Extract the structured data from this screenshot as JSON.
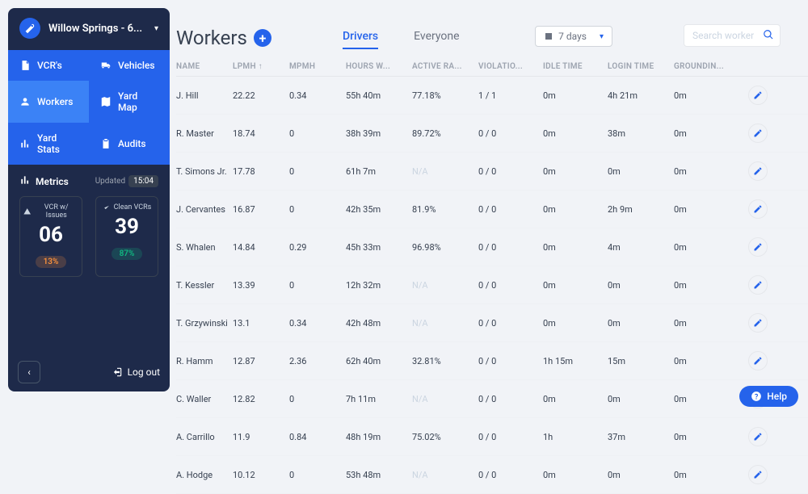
{
  "location": {
    "name": "Willow Springs - 6..."
  },
  "nav": {
    "items": [
      {
        "label": "VCR's"
      },
      {
        "label": "Vehicles"
      },
      {
        "label": "Workers"
      },
      {
        "label": "Yard Map"
      },
      {
        "label": "Yard Stats"
      },
      {
        "label": "Audits"
      }
    ]
  },
  "metrics": {
    "title": "Metrics",
    "updated_label": "Updated",
    "updated_time": "15:04",
    "tiles": {
      "issues": {
        "label": "VCR w/ Issues",
        "count": "06",
        "pct": "13%"
      },
      "clean": {
        "label": "Clean VCRs",
        "count": "39",
        "pct": "87%"
      }
    }
  },
  "footer": {
    "logout": "Log out"
  },
  "page": {
    "title": "Workers",
    "tabs": {
      "drivers": "Drivers",
      "everyone": "Everyone"
    },
    "period": "7 days",
    "search_placeholder": "Search worker"
  },
  "columns": [
    "NAME",
    "LPMH ↑",
    "MPMH",
    "HOURS W...",
    "ACTIVE RA...",
    "VIOLATIO...",
    "IDLE TIME",
    "LOGIN TIME",
    "GROUNDIN..."
  ],
  "rows": [
    {
      "name": "J. Hill",
      "lpmh": "22.22",
      "mpmh": "0.34",
      "hours": "55h 40m",
      "active": "77.18%",
      "viol": "1 / 1",
      "idle": "0m",
      "login": "4h 21m",
      "ground": "0m"
    },
    {
      "name": "R. Master",
      "lpmh": "18.74",
      "mpmh": "0",
      "hours": "38h 39m",
      "active": "89.72%",
      "viol": "0 / 0",
      "idle": "0m",
      "login": "38m",
      "ground": "0m"
    },
    {
      "name": "T. Simons Jr.",
      "lpmh": "17.78",
      "mpmh": "0",
      "hours": "61h 7m",
      "active": "N/A",
      "viol": "0 / 0",
      "idle": "0m",
      "login": "0m",
      "ground": "0m"
    },
    {
      "name": "J. Cervantes",
      "lpmh": "16.87",
      "mpmh": "0",
      "hours": "42h 35m",
      "active": "81.9%",
      "viol": "0 / 0",
      "idle": "0m",
      "login": "2h 9m",
      "ground": "0m"
    },
    {
      "name": "S. Whalen",
      "lpmh": "14.84",
      "mpmh": "0.29",
      "hours": "45h 33m",
      "active": "96.98%",
      "viol": "0 / 0",
      "idle": "0m",
      "login": "4m",
      "ground": "0m"
    },
    {
      "name": "T. Kessler",
      "lpmh": "13.39",
      "mpmh": "0",
      "hours": "12h 32m",
      "active": "N/A",
      "viol": "0 / 0",
      "idle": "0m",
      "login": "0m",
      "ground": "0m"
    },
    {
      "name": "T. Grzywinski",
      "lpmh": "13.1",
      "mpmh": "0.34",
      "hours": "42h 48m",
      "active": "N/A",
      "viol": "0 / 0",
      "idle": "0m",
      "login": "0m",
      "ground": "0m"
    },
    {
      "name": "R. Hamm",
      "lpmh": "12.87",
      "mpmh": "2.36",
      "hours": "62h 40m",
      "active": "32.81%",
      "viol": "0 / 0",
      "idle": "1h 15m",
      "login": "15m",
      "ground": "0m"
    },
    {
      "name": "C. Waller",
      "lpmh": "12.82",
      "mpmh": "0",
      "hours": "7h 11m",
      "active": "N/A",
      "viol": "0 / 0",
      "idle": "0m",
      "login": "0m",
      "ground": "0m"
    },
    {
      "name": "A. Carrillo",
      "lpmh": "11.9",
      "mpmh": "0.84",
      "hours": "48h 19m",
      "active": "75.02%",
      "viol": "0 / 0",
      "idle": "1h",
      "login": "37m",
      "ground": "0m"
    },
    {
      "name": "A. Hodge",
      "lpmh": "10.12",
      "mpmh": "0",
      "hours": "53h 48m",
      "active": "N/A",
      "viol": "0 / 0",
      "idle": "0m",
      "login": "0m",
      "ground": "0m"
    }
  ],
  "help": "Help",
  "colors": {
    "sidebar_bg": "#1e2a4a",
    "accent": "#2563eb",
    "active_nav": "#3b82f6",
    "page_bg": "#f1f3f7",
    "text_muted": "#9ca3af",
    "ok": "#10b981",
    "warn": "#fb923c"
  }
}
